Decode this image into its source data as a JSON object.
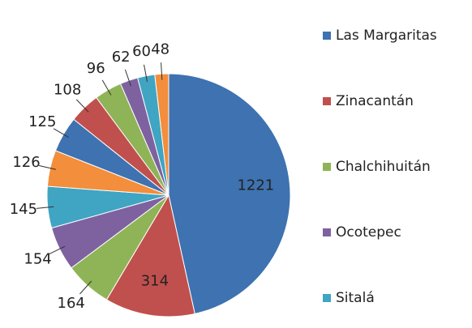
{
  "chart_data": {
    "type": "pie",
    "categories": [
      "Las Margaritas",
      "Zinacantán",
      "Chalchihuitán",
      "Ocotepec",
      "Sitalá",
      null,
      null,
      null,
      null,
      null,
      null,
      null
    ],
    "values": [
      1221,
      314,
      164,
      154,
      145,
      126,
      125,
      108,
      96,
      62,
      60,
      48
    ],
    "colors": [
      "#3e72b0",
      "#c0504d",
      "#8fb457",
      "#7e62a0",
      "#3fa5c2",
      "#f28e3c",
      "#3e72b0",
      "#c0504d",
      "#8fb457",
      "#7e62a0",
      "#3fa5c2",
      "#f28e3c"
    ],
    "legend": "right"
  }
}
